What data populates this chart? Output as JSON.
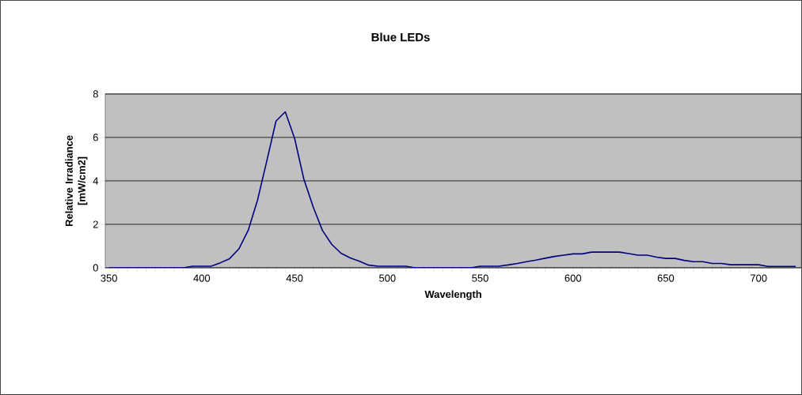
{
  "chart_data": {
    "type": "line",
    "title": "Blue LEDs",
    "xlabel": "Wavelength",
    "ylabel": "Relative Irradiance [mW/cm2]",
    "x": [
      350,
      355,
      360,
      365,
      370,
      375,
      380,
      385,
      390,
      395,
      400,
      405,
      410,
      415,
      420,
      425,
      430,
      435,
      440,
      445,
      450,
      455,
      460,
      465,
      470,
      475,
      480,
      485,
      490,
      495,
      500,
      505,
      510,
      515,
      520,
      525,
      530,
      535,
      540,
      545,
      550,
      555,
      560,
      565,
      570,
      575,
      580,
      585,
      590,
      595,
      600,
      605,
      610,
      615,
      620,
      625,
      630,
      635,
      640,
      645,
      650,
      655,
      660,
      665,
      670,
      675,
      680,
      685,
      690,
      695,
      700,
      705,
      710,
      715,
      720
    ],
    "values": [
      0,
      0,
      0,
      0,
      0,
      0,
      0,
      0,
      0,
      0.07,
      0.07,
      0.07,
      0.23,
      0.42,
      0.87,
      1.72,
      3.1,
      4.9,
      6.75,
      7.18,
      5.96,
      4.08,
      2.81,
      1.72,
      1.08,
      0.67,
      0.45,
      0.3,
      0.12,
      0.07,
      0.07,
      0.07,
      0.07,
      0,
      0,
      0,
      0,
      0,
      0,
      0,
      0.07,
      0.07,
      0.07,
      0.13,
      0.2,
      0.28,
      0.35,
      0.44,
      0.52,
      0.58,
      0.64,
      0.64,
      0.72,
      0.72,
      0.72,
      0.72,
      0.65,
      0.58,
      0.58,
      0.49,
      0.43,
      0.43,
      0.34,
      0.28,
      0.28,
      0.2,
      0.2,
      0.14,
      0.14,
      0.14,
      0.14,
      0.06,
      0.06,
      0.06,
      0.06
    ],
    "color": "#000080",
    "xlim": [
      348,
      723
    ],
    "xticks": [
      350,
      400,
      450,
      500,
      550,
      600,
      650,
      700
    ],
    "ylim": [
      0,
      8
    ],
    "yticks": [
      0,
      2,
      4,
      6,
      8
    ],
    "grid": "y"
  }
}
